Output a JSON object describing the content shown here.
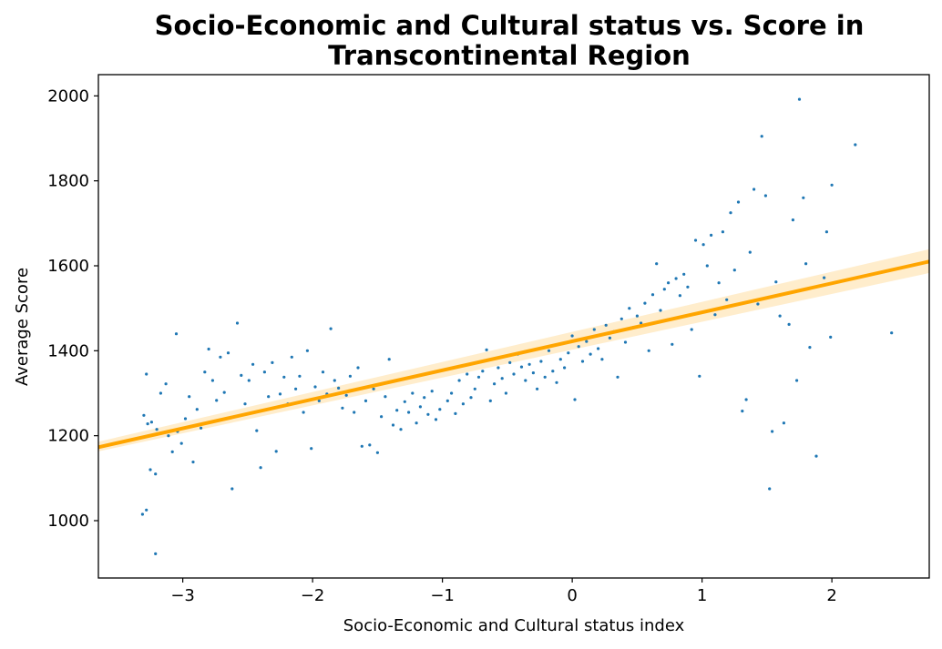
{
  "chart_data": {
    "type": "scatter",
    "title_lines": [
      "Socio-Economic and Cultural status vs. Score in",
      "Transcontinental Region"
    ],
    "xlabel": "Socio-Economic and Cultural status index",
    "ylabel": "Average Score",
    "xlim": [
      -3.65,
      2.75
    ],
    "ylim": [
      865,
      2050
    ],
    "x_ticks": [
      -3,
      -2,
      -1,
      0,
      1,
      2
    ],
    "x_tick_labels": [
      "−3",
      "−2",
      "−1",
      "0",
      "1",
      "2"
    ],
    "y_ticks": [
      1000,
      1200,
      1400,
      1600,
      1800,
      2000
    ],
    "y_tick_labels": [
      "1000",
      "1200",
      "1400",
      "1600",
      "1800",
      "2000"
    ],
    "grid": false,
    "colors": {
      "points": "#1f77b4",
      "fit_line": "#ffa500",
      "confidence_band": "#ffa500"
    },
    "regression": {
      "x": [
        -3.65,
        2.75
      ],
      "y": [
        1173,
        1610
      ],
      "ci_lower": [
        1163,
        1583
      ],
      "ci_upper": [
        1186,
        1639
      ]
    },
    "points": [
      [
        -3.31,
        1015
      ],
      [
        -3.28,
        1025
      ],
      [
        -3.21,
        922
      ],
      [
        -3.25,
        1120
      ],
      [
        -3.21,
        1110
      ],
      [
        -3.28,
        1345
      ],
      [
        -3.05,
        1440
      ],
      [
        -3.3,
        1248
      ],
      [
        -3.27,
        1228
      ],
      [
        -3.24,
        1232
      ],
      [
        -3.2,
        1215
      ],
      [
        -3.17,
        1300
      ],
      [
        -3.13,
        1322
      ],
      [
        -3.11,
        1200
      ],
      [
        -3.08,
        1162
      ],
      [
        -3.04,
        1210
      ],
      [
        -3.01,
        1182
      ],
      [
        -2.98,
        1240
      ],
      [
        -2.95,
        1292
      ],
      [
        -2.92,
        1138
      ],
      [
        -2.89,
        1262
      ],
      [
        -2.86,
        1218
      ],
      [
        -2.83,
        1350
      ],
      [
        -2.8,
        1404
      ],
      [
        -2.77,
        1330
      ],
      [
        -2.74,
        1283
      ],
      [
        -2.71,
        1385
      ],
      [
        -2.68,
        1302
      ],
      [
        -2.65,
        1395
      ],
      [
        -2.62,
        1075
      ],
      [
        -2.58,
        1465
      ],
      [
        -2.55,
        1342
      ],
      [
        -2.52,
        1275
      ],
      [
        -2.49,
        1330
      ],
      [
        -2.46,
        1368
      ],
      [
        -2.43,
        1212
      ],
      [
        -2.4,
        1125
      ],
      [
        -2.37,
        1350
      ],
      [
        -2.34,
        1292
      ],
      [
        -2.31,
        1372
      ],
      [
        -2.28,
        1163
      ],
      [
        -2.25,
        1298
      ],
      [
        -2.22,
        1338
      ],
      [
        -2.19,
        1275
      ],
      [
        -2.16,
        1385
      ],
      [
        -2.13,
        1310
      ],
      [
        -2.1,
        1340
      ],
      [
        -2.07,
        1255
      ],
      [
        -2.04,
        1400
      ],
      [
        -2.01,
        1170
      ],
      [
        -1.98,
        1315
      ],
      [
        -1.95,
        1282
      ],
      [
        -1.92,
        1350
      ],
      [
        -1.89,
        1298
      ],
      [
        -1.86,
        1452
      ],
      [
        -1.83,
        1330
      ],
      [
        -1.8,
        1312
      ],
      [
        -1.77,
        1265
      ],
      [
        -1.74,
        1295
      ],
      [
        -1.71,
        1340
      ],
      [
        -1.68,
        1255
      ],
      [
        -1.65,
        1360
      ],
      [
        -1.62,
        1175
      ],
      [
        -1.59,
        1282
      ],
      [
        -1.56,
        1178
      ],
      [
        -1.53,
        1310
      ],
      [
        -1.5,
        1160
      ],
      [
        -1.47,
        1245
      ],
      [
        -1.44,
        1292
      ],
      [
        -1.41,
        1380
      ],
      [
        -1.38,
        1225
      ],
      [
        -1.35,
        1260
      ],
      [
        -1.32,
        1215
      ],
      [
        -1.29,
        1280
      ],
      [
        -1.26,
        1255
      ],
      [
        -1.23,
        1300
      ],
      [
        -1.2,
        1230
      ],
      [
        -1.17,
        1268
      ],
      [
        -1.14,
        1290
      ],
      [
        -1.11,
        1250
      ],
      [
        -1.08,
        1305
      ],
      [
        -1.05,
        1238
      ],
      [
        -1.02,
        1262
      ],
      [
        -0.99,
        1355
      ],
      [
        -0.96,
        1282
      ],
      [
        -0.93,
        1300
      ],
      [
        -0.9,
        1252
      ],
      [
        -0.87,
        1330
      ],
      [
        -0.84,
        1275
      ],
      [
        -0.81,
        1345
      ],
      [
        -0.78,
        1290
      ],
      [
        -0.75,
        1310
      ],
      [
        -0.72,
        1338
      ],
      [
        -0.69,
        1352
      ],
      [
        -0.66,
        1402
      ],
      [
        -0.63,
        1282
      ],
      [
        -0.6,
        1322
      ],
      [
        -0.57,
        1360
      ],
      [
        -0.54,
        1335
      ],
      [
        -0.51,
        1300
      ],
      [
        -0.48,
        1372
      ],
      [
        -0.45,
        1345
      ],
      [
        -0.42,
        1392
      ],
      [
        -0.39,
        1362
      ],
      [
        -0.36,
        1330
      ],
      [
        -0.33,
        1368
      ],
      [
        -0.3,
        1348
      ],
      [
        -0.27,
        1310
      ],
      [
        -0.24,
        1375
      ],
      [
        -0.21,
        1338
      ],
      [
        -0.18,
        1400
      ],
      [
        -0.15,
        1352
      ],
      [
        -0.12,
        1325
      ],
      [
        -0.09,
        1380
      ],
      [
        -0.06,
        1360
      ],
      [
        -0.03,
        1395
      ],
      [
        0.0,
        1435
      ],
      [
        0.02,
        1285
      ],
      [
        0.05,
        1410
      ],
      [
        0.08,
        1375
      ],
      [
        0.11,
        1422
      ],
      [
        0.14,
        1392
      ],
      [
        0.17,
        1450
      ],
      [
        0.2,
        1405
      ],
      [
        0.23,
        1380
      ],
      [
        0.26,
        1460
      ],
      [
        0.29,
        1430
      ],
      [
        0.32,
        1445
      ],
      [
        0.35,
        1338
      ],
      [
        0.38,
        1475
      ],
      [
        0.41,
        1420
      ],
      [
        0.44,
        1500
      ],
      [
        0.47,
        1455
      ],
      [
        0.5,
        1482
      ],
      [
        0.53,
        1465
      ],
      [
        0.56,
        1512
      ],
      [
        0.59,
        1400
      ],
      [
        0.62,
        1532
      ],
      [
        0.65,
        1605
      ],
      [
        0.68,
        1495
      ],
      [
        0.71,
        1545
      ],
      [
        0.74,
        1560
      ],
      [
        0.77,
        1415
      ],
      [
        0.8,
        1570
      ],
      [
        0.83,
        1530
      ],
      [
        0.86,
        1580
      ],
      [
        0.89,
        1550
      ],
      [
        0.92,
        1450
      ],
      [
        0.95,
        1660
      ],
      [
        0.98,
        1340
      ],
      [
        1.01,
        1650
      ],
      [
        1.04,
        1600
      ],
      [
        1.07,
        1672
      ],
      [
        1.1,
        1485
      ],
      [
        1.13,
        1560
      ],
      [
        1.16,
        1680
      ],
      [
        1.19,
        1520
      ],
      [
        1.22,
        1725
      ],
      [
        1.25,
        1590
      ],
      [
        1.28,
        1750
      ],
      [
        1.31,
        1258
      ],
      [
        1.34,
        1285
      ],
      [
        1.37,
        1632
      ],
      [
        1.4,
        1780
      ],
      [
        1.43,
        1510
      ],
      [
        1.46,
        1905
      ],
      [
        1.49,
        1765
      ],
      [
        1.52,
        1075
      ],
      [
        1.54,
        1210
      ],
      [
        1.57,
        1562
      ],
      [
        1.6,
        1482
      ],
      [
        1.63,
        1230
      ],
      [
        1.67,
        1462
      ],
      [
        1.7,
        1708
      ],
      [
        1.73,
        1330
      ],
      [
        1.75,
        1992
      ],
      [
        1.78,
        1760
      ],
      [
        1.8,
        1605
      ],
      [
        1.83,
        1408
      ],
      [
        1.88,
        1152
      ],
      [
        1.94,
        1572
      ],
      [
        1.96,
        1680
      ],
      [
        1.99,
        1432
      ],
      [
        2.0,
        1790
      ],
      [
        2.18,
        1885
      ],
      [
        2.46,
        1442
      ]
    ]
  }
}
